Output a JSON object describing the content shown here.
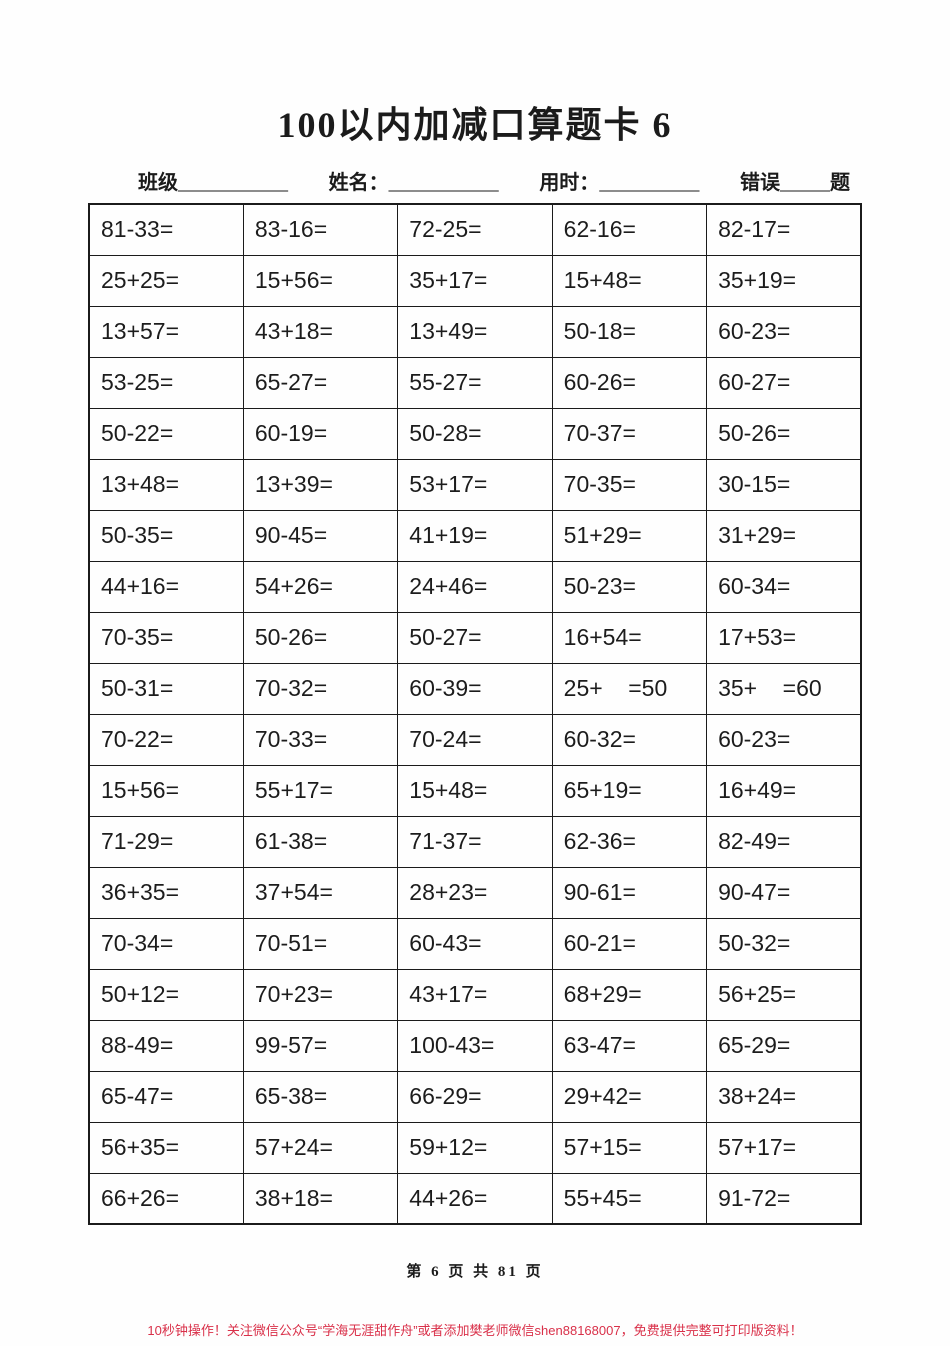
{
  "page": {
    "title": "100以内加减口算题卡 6",
    "info": {
      "class_label": "班级",
      "class_blank": "___________",
      "name_label": "姓名：",
      "name_blank": "___________",
      "time_label": "用时：",
      "time_blank": "__________",
      "error_label": "错误",
      "error_blank": "_____",
      "error_suffix": "题"
    },
    "footer": {
      "page_number": "第 6 页 共 81 页",
      "promo": "10秒钟操作！关注微信公众号“学海无涯甜作舟”或者添加樊老师微信shen88168007，免费提供完整可打印版资料！",
      "promo_color": "#d93049"
    }
  },
  "table": {
    "rows": [
      [
        "81-33=",
        "83-16=",
        "72-25=",
        "62-16=",
        "82-17="
      ],
      [
        "25+25=",
        "15+56=",
        "35+17=",
        "15+48=",
        "35+19="
      ],
      [
        "13+57=",
        "43+18=",
        "13+49=",
        "50-18=",
        "60-23="
      ],
      [
        "53-25=",
        "65-27=",
        "55-27=",
        "60-26=",
        "60-27="
      ],
      [
        "50-22=",
        "60-19=",
        "50-28=",
        "70-37=",
        "50-26="
      ],
      [
        "13+48=",
        "13+39=",
        "53+17=",
        "70-35=",
        "30-15="
      ],
      [
        "50-35=",
        "90-45=",
        "41+19=",
        "51+29=",
        "31+29="
      ],
      [
        "44+16=",
        "54+26=",
        "24+46=",
        "50-23=",
        "60-34="
      ],
      [
        "70-35=",
        "50-26=",
        "50-27=",
        "16+54=",
        "17+53="
      ],
      [
        "50-31=",
        "70-32=",
        "60-39=",
        "25+    =50",
        "35+    =60"
      ],
      [
        "70-22=",
        "70-33=",
        "70-24=",
        "60-32=",
        "60-23="
      ],
      [
        "15+56=",
        "55+17=",
        "15+48=",
        "65+19=",
        "16+49="
      ],
      [
        "71-29=",
        "61-38=",
        "71-37=",
        "62-36=",
        "82-49="
      ],
      [
        "36+35=",
        "37+54=",
        "28+23=",
        "90-61=",
        "90-47="
      ],
      [
        "70-34=",
        "70-51=",
        "60-43=",
        "60-21=",
        "50-32="
      ],
      [
        "50+12=",
        "70+23=",
        "43+17=",
        "68+29=",
        "56+25="
      ],
      [
        "88-49=",
        "99-57=",
        "100-43=",
        "63-47=",
        "65-29="
      ],
      [
        "65-47=",
        "65-38=",
        "66-29=",
        "29+42=",
        "38+24="
      ],
      [
        "56+35=",
        "57+24=",
        "59+12=",
        "57+15=",
        "57+17="
      ],
      [
        "66+26=",
        "38+18=",
        "44+26=",
        "55+45=",
        "91-72="
      ]
    ]
  }
}
